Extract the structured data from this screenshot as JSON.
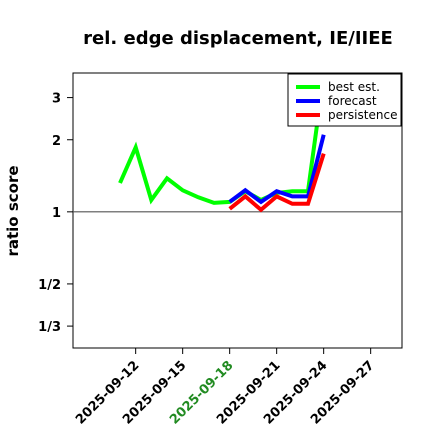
{
  "chart_data": {
    "type": "line",
    "title": "rel. edge displacement, IE/IIEE",
    "xlabel": "",
    "ylabel": "ratio score",
    "y_scale": "log",
    "ylim": [
      0.27,
      3.8
    ],
    "xlim": [
      "2025-09-08",
      "2025-09-29"
    ],
    "y_ticks": [
      {
        "value": 0.3333,
        "label": "1/3"
      },
      {
        "value": 0.5,
        "label": "1/2"
      },
      {
        "value": 1,
        "label": "1"
      },
      {
        "value": 2,
        "label": "2"
      },
      {
        "value": 3,
        "label": "3"
      }
    ],
    "x_ticks": [
      {
        "date": "2025-09-12",
        "label": "2025-09-12",
        "color": "#000000"
      },
      {
        "date": "2025-09-15",
        "label": "2025-09-15",
        "color": "#000000"
      },
      {
        "date": "2025-09-18",
        "label": "2025-09-18",
        "color": "#228b22"
      },
      {
        "date": "2025-09-21",
        "label": "2025-09-21",
        "color": "#000000"
      },
      {
        "date": "2025-09-24",
        "label": "2025-09-24",
        "color": "#000000"
      },
      {
        "date": "2025-09-27",
        "label": "2025-09-27",
        "color": "#000000"
      }
    ],
    "reference_line": 1,
    "grid": false,
    "legend_position": "top-right",
    "series": [
      {
        "name": "best est.",
        "color": "#00ff00",
        "points": [
          {
            "x": "2025-09-11",
            "y": 1.32
          },
          {
            "x": "2025-09-12",
            "y": 1.86
          },
          {
            "x": "2025-09-13",
            "y": 1.12
          },
          {
            "x": "2025-09-14",
            "y": 1.38
          },
          {
            "x": "2025-09-15",
            "y": 1.23
          },
          {
            "x": "2025-09-16",
            "y": 1.15
          },
          {
            "x": "2025-09-17",
            "y": 1.09
          },
          {
            "x": "2025-09-18",
            "y": 1.1
          },
          {
            "x": "2025-09-19",
            "y": 1.22
          },
          {
            "x": "2025-09-20",
            "y": 1.12
          },
          {
            "x": "2025-09-21",
            "y": 1.2
          },
          {
            "x": "2025-09-22",
            "y": 1.22
          },
          {
            "x": "2025-09-23",
            "y": 1.22
          },
          {
            "x": "2025-09-24",
            "y": 3.7
          }
        ]
      },
      {
        "name": "forecast",
        "color": "#0000ff",
        "points": [
          {
            "x": "2025-09-18",
            "y": 1.1
          },
          {
            "x": "2025-09-19",
            "y": 1.23
          },
          {
            "x": "2025-09-20",
            "y": 1.1
          },
          {
            "x": "2025-09-21",
            "y": 1.22
          },
          {
            "x": "2025-09-22",
            "y": 1.16
          },
          {
            "x": "2025-09-23",
            "y": 1.16
          },
          {
            "x": "2025-09-24",
            "y": 2.1
          }
        ]
      },
      {
        "name": "persistence",
        "color": "#ff0000",
        "points": [
          {
            "x": "2025-09-18",
            "y": 1.03
          },
          {
            "x": "2025-09-19",
            "y": 1.16
          },
          {
            "x": "2025-09-20",
            "y": 1.02
          },
          {
            "x": "2025-09-21",
            "y": 1.16
          },
          {
            "x": "2025-09-22",
            "y": 1.08
          },
          {
            "x": "2025-09-23",
            "y": 1.08
          },
          {
            "x": "2025-09-24",
            "y": 1.75
          }
        ]
      }
    ]
  }
}
